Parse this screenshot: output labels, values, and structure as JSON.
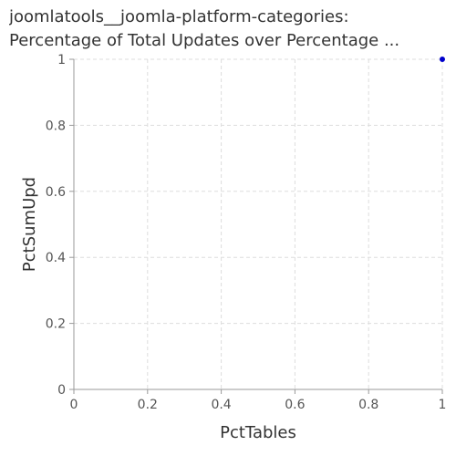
{
  "chart_data": {
    "type": "scatter",
    "title_line1": "joomlatools__joomla-platform-categories:",
    "title_line2": "Percentage of Total Updates over Percentage ...",
    "xlabel": "PctTables",
    "ylabel": "PctSumUpd",
    "xlim": [
      0,
      1
    ],
    "ylim": [
      0,
      1
    ],
    "x_ticks": [
      "0",
      "0.2",
      "0.4",
      "0.6",
      "0.8",
      "1"
    ],
    "y_ticks": [
      "0",
      "0.2",
      "0.4",
      "0.6",
      "0.8",
      "1"
    ],
    "grid": true,
    "series": [
      {
        "x": [
          1.0
        ],
        "y": [
          1.0
        ],
        "color": "#0000cc"
      }
    ]
  }
}
